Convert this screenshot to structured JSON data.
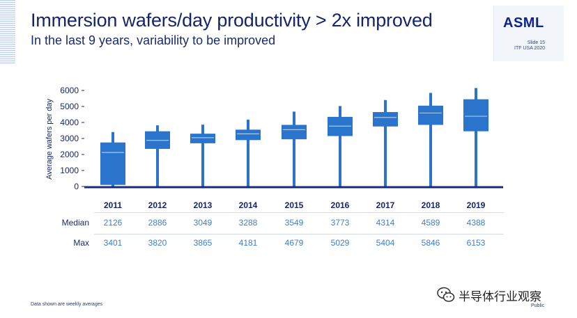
{
  "header": {
    "title": "Immersion wafers/day productivity > 2x improved",
    "subtitle": "In the last 9 years, variability to be improved",
    "logo": "ASML",
    "slide": "Slide 15",
    "event": "ITF USA 2020"
  },
  "chart_data": {
    "type": "boxplot",
    "ylabel": "Average wafers per day",
    "ylim": [
      0,
      6000
    ],
    "yticks": [
      "0",
      "1000",
      "2000",
      "3000",
      "4000",
      "5000",
      "6000"
    ],
    "categories": [
      "2011",
      "2012",
      "2013",
      "2014",
      "2015",
      "2016",
      "2017",
      "2018",
      "2019"
    ],
    "median": [
      2126,
      2886,
      3049,
      3288,
      3549,
      3773,
      4314,
      4589,
      4388
    ],
    "max": [
      3401,
      3820,
      3865,
      4181,
      4679,
      5029,
      5404,
      5846,
      6153
    ],
    "q1": [
      100,
      2350,
      2700,
      2900,
      2950,
      3150,
      3750,
      3850,
      3450
    ],
    "q3": [
      2750,
      3450,
      3300,
      3550,
      3850,
      4350,
      4650,
      5050,
      5450
    ],
    "min": [
      0,
      0,
      0,
      0,
      0,
      0,
      0,
      0,
      0
    ],
    "box_color": "#2a74cc",
    "median_color": "#a8c8f0"
  },
  "table": {
    "median_label": "Median",
    "max_label": "Max",
    "years": [
      "2011",
      "2012",
      "2013",
      "2014",
      "2015",
      "2016",
      "2017",
      "2018",
      "2019"
    ],
    "median": [
      "2126",
      "2886",
      "3049",
      "3288",
      "3549",
      "3773",
      "4314",
      "4589",
      "4388"
    ],
    "max": [
      "3401",
      "3820",
      "3865",
      "4181",
      "4679",
      "5029",
      "5404",
      "5846",
      "6153"
    ]
  },
  "footer": {
    "note": "Data shown are weekly averages",
    "classification": "Public",
    "watermark": "半导体行业观察",
    "watermark_icon": "wechat-icon"
  }
}
